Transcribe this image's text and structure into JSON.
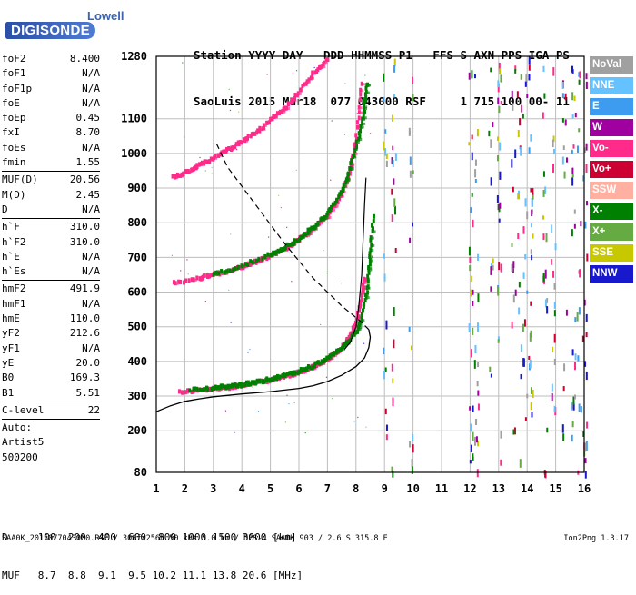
{
  "logo": {
    "brand": "Lowell",
    "product": "DIGISONDE"
  },
  "header": {
    "line1": "Station YYYY DAY   DDD HHMMSS P1   FFS S AXN PPS IGA PS",
    "line2": "SaoLuis 2015 Mar18  077 043000 RSF     1 715 100 00- 11"
  },
  "params_group1": [
    {
      "label": "foF2",
      "value": "8.400"
    },
    {
      "label": "foF1",
      "value": "N/A"
    },
    {
      "label": "foF1p",
      "value": "N/A"
    },
    {
      "label": "foE",
      "value": "N/A"
    },
    {
      "label": "foEp",
      "value": "0.45"
    },
    {
      "label": "fxI",
      "value": "8.70"
    },
    {
      "label": "foEs",
      "value": "N/A"
    },
    {
      "label": "fmin",
      "value": "1.55"
    }
  ],
  "params_group2": [
    {
      "label": "MUF(D)",
      "value": "20.56"
    },
    {
      "label": "M(D)",
      "value": "2.45"
    },
    {
      "label": "D",
      "value": "N/A"
    }
  ],
  "params_group3": [
    {
      "label": "h`F",
      "value": "310.0"
    },
    {
      "label": "h`F2",
      "value": "310.0"
    },
    {
      "label": "h`E",
      "value": "N/A"
    },
    {
      "label": "h`Es",
      "value": "N/A"
    }
  ],
  "params_group4": [
    {
      "label": "hmF2",
      "value": "491.9"
    },
    {
      "label": "hmF1",
      "value": "N/A"
    },
    {
      "label": "hmE",
      "value": "110.0"
    },
    {
      "label": "yF2",
      "value": "212.6"
    },
    {
      "label": "yF1",
      "value": "N/A"
    },
    {
      "label": "yE",
      "value": "20.0"
    },
    {
      "label": "B0",
      "value": "169.3"
    },
    {
      "label": "B1",
      "value": "5.51"
    }
  ],
  "params_group5": [
    {
      "label": "C-level",
      "value": "22"
    }
  ],
  "autoscale": {
    "line1": "Auto:",
    "line2": "Artist5",
    "line3": "500200"
  },
  "legend": [
    {
      "name": "NoVal",
      "color": "#a0a0a0"
    },
    {
      "name": "NNE",
      "color": "#66c2ff"
    },
    {
      "name": "E",
      "color": "#3d9bf0"
    },
    {
      "name": "W",
      "color": "#a000a0"
    },
    {
      "name": "Vo-",
      "color": "#ff2a8a"
    },
    {
      "name": "Vo+",
      "color": "#cc0033"
    },
    {
      "name": "SSW",
      "color": "#ffb0a0"
    },
    {
      "name": "X-",
      "color": "#008000"
    },
    {
      "name": "X+",
      "color": "#66aa44"
    },
    {
      "name": "SSE",
      "color": "#c8c800"
    },
    {
      "name": "NNW",
      "color": "#1818cc"
    }
  ],
  "muf_table": {
    "line1": "D     100  200  400  600  800 1000 1500 3000 [km]",
    "line2": "MUF   8.7  8.8  9.1  9.5 10.2 11.1 13.8 20.6 [MHz]"
  },
  "footer": "SAA0K_2015077043000.RSF / 300fx256h 50 kHz 5.0 km / DPS-4 SAA0K 903 / 2.6 S 315.8 E",
  "version": "Ion2Png 1.3.17",
  "chart_data": {
    "type": "scatter",
    "xlim": [
      1,
      16
    ],
    "ylim": [
      80,
      1280
    ],
    "x_ticks": [
      1,
      2,
      3,
      4,
      5,
      6,
      7,
      8,
      9,
      10,
      11,
      12,
      13,
      14,
      15,
      16
    ],
    "y_ticks": [
      80,
      200,
      300,
      400,
      500,
      600,
      700,
      800,
      900,
      1000,
      1100,
      1280
    ],
    "grid": true,
    "legend_position": "right",
    "series": [
      {
        "name": "Vo-",
        "points": [
          [
            1.8,
            312
          ],
          [
            2.5,
            316
          ],
          [
            3.0,
            320
          ],
          [
            3.5,
            325
          ],
          [
            4.0,
            331
          ],
          [
            4.5,
            338
          ],
          [
            5.0,
            346
          ],
          [
            5.5,
            356
          ],
          [
            6.0,
            368
          ],
          [
            6.5,
            384
          ],
          [
            7.0,
            405
          ],
          [
            7.5,
            438
          ],
          [
            7.8,
            470
          ],
          [
            8.0,
            510
          ],
          [
            8.2,
            580
          ],
          [
            8.3,
            640
          ]
        ]
      },
      {
        "name": "X-",
        "points": [
          [
            2.2,
            318
          ],
          [
            3.0,
            323
          ],
          [
            3.5,
            328
          ],
          [
            4.0,
            333
          ],
          [
            4.5,
            340
          ],
          [
            5.0,
            349
          ],
          [
            5.5,
            359
          ],
          [
            6.0,
            371
          ],
          [
            6.5,
            386
          ],
          [
            7.0,
            408
          ],
          [
            7.5,
            440
          ],
          [
            8.0,
            480
          ],
          [
            8.2,
            520
          ],
          [
            8.4,
            610
          ],
          [
            8.5,
            700
          ],
          [
            8.6,
            820
          ]
        ]
      },
      {
        "name": "Vo-",
        "points": [
          [
            1.6,
            625
          ],
          [
            2.5,
            640
          ],
          [
            3.0,
            650
          ],
          [
            3.5,
            660
          ],
          [
            4.0,
            672
          ],
          [
            4.5,
            688
          ],
          [
            5.0,
            705
          ],
          [
            5.5,
            725
          ],
          [
            6.0,
            750
          ],
          [
            6.5,
            780
          ],
          [
            7.0,
            820
          ],
          [
            7.5,
            880
          ],
          [
            7.8,
            950
          ],
          [
            8.0,
            1040
          ],
          [
            8.2,
            1200
          ]
        ]
      },
      {
        "name": "X-",
        "points": [
          [
            3.0,
            650
          ],
          [
            4.0,
            675
          ],
          [
            5.0,
            708
          ],
          [
            5.5,
            728
          ],
          [
            6.0,
            753
          ],
          [
            6.5,
            785
          ],
          [
            7.0,
            826
          ],
          [
            7.5,
            885
          ],
          [
            7.8,
            960
          ],
          [
            8.1,
            1050
          ],
          [
            8.3,
            1130
          ],
          [
            8.4,
            1200
          ]
        ]
      },
      {
        "name": "Vo-",
        "points": [
          [
            1.6,
            930
          ],
          [
            2.0,
            945
          ],
          [
            2.5,
            965
          ],
          [
            3.0,
            985
          ],
          [
            3.5,
            1010
          ],
          [
            4.0,
            1035
          ],
          [
            4.5,
            1060
          ],
          [
            5.0,
            1095
          ],
          [
            5.5,
            1130
          ],
          [
            6.0,
            1175
          ],
          [
            6.5,
            1230
          ],
          [
            7.0,
            1270
          ]
        ]
      }
    ],
    "profile": [
      [
        1.0,
        255
      ],
      [
        1.5,
        272
      ],
      [
        2.0,
        285
      ],
      [
        2.5,
        292
      ],
      [
        3.0,
        298
      ],
      [
        4.0,
        306
      ],
      [
        5.0,
        313
      ],
      [
        6.0,
        322
      ],
      [
        6.5,
        330
      ],
      [
        7.0,
        342
      ],
      [
        7.5,
        360
      ],
      [
        8.0,
        385
      ],
      [
        8.3,
        410
      ],
      [
        8.45,
        440
      ],
      [
        8.5,
        470
      ],
      [
        8.45,
        492
      ]
    ],
    "profile_upper": [
      [
        8.45,
        492
      ],
      [
        8.1,
        520
      ],
      [
        7.5,
        560
      ],
      [
        6.5,
        640
      ],
      [
        5.5,
        740
      ],
      [
        4.5,
        850
      ],
      [
        3.5,
        960
      ],
      [
        3.1,
        1030
      ]
    ],
    "trace_model": [
      [
        7.6,
        435
      ],
      [
        7.8,
        455
      ],
      [
        8.0,
        500
      ],
      [
        8.1,
        560
      ],
      [
        8.2,
        650
      ],
      [
        8.25,
        750
      ],
      [
        8.3,
        850
      ],
      [
        8.35,
        930
      ]
    ]
  }
}
